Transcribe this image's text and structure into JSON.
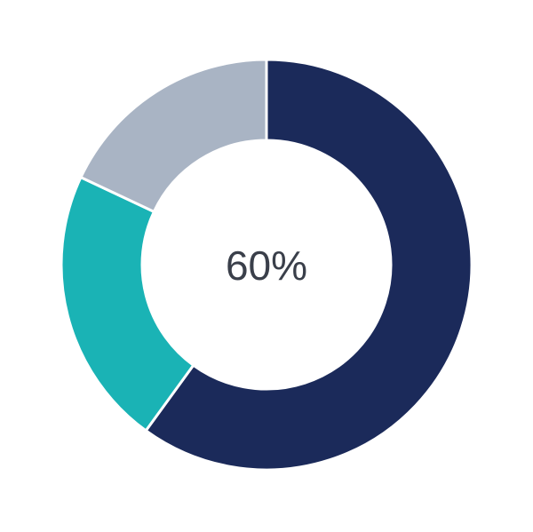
{
  "chart_data": {
    "type": "pie",
    "variant": "donut",
    "center_label": "60%",
    "slices": [
      {
        "value": 60,
        "color": "#1b2a5a"
      },
      {
        "value": 22,
        "color": "#1ab3b5"
      },
      {
        "value": 18,
        "color": "#a9b4c4"
      }
    ],
    "start_angle_deg": 0,
    "direction": "clockwise",
    "legend": "none"
  }
}
